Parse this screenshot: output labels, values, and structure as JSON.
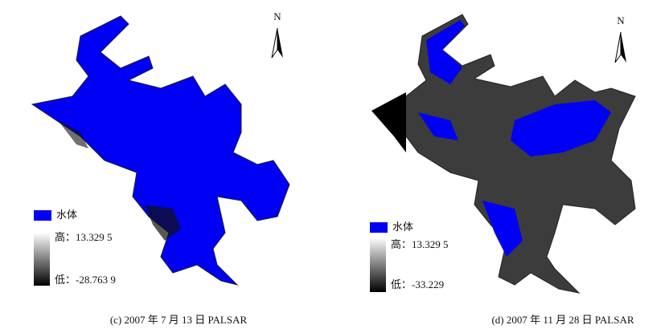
{
  "panels": [
    {
      "north": "N",
      "legend": {
        "water": "水体",
        "high": "高：13.329 5",
        "low": "低：-28.763 9"
      },
      "caption": "(c) 2007 年 7 月 13 日 PALSAR"
    },
    {
      "north": "N",
      "legend": {
        "water": "水体",
        "high": "高：13.329 5",
        "low": "低：-33.229"
      },
      "caption": "(d) 2007 年 11 月 28 日 PALSAR"
    }
  ]
}
